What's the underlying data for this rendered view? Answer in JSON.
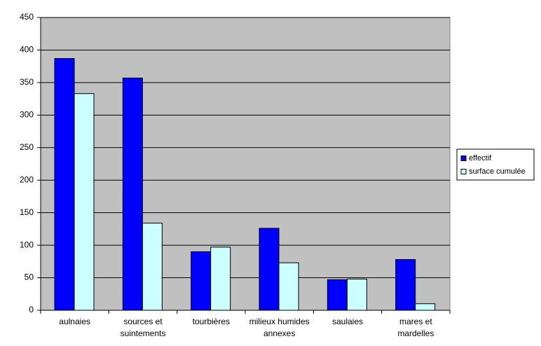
{
  "chart_data": {
    "type": "bar",
    "categories": [
      "aulnaies",
      "sources et suintements",
      "tourbières",
      "milieux humides annexes",
      "saulaies",
      "mares et mardelles"
    ],
    "series": [
      {
        "name": "effectif",
        "color": "#0000ff",
        "values": [
          387,
          357,
          90,
          126,
          47,
          78
        ]
      },
      {
        "name": "surface cumulée",
        "color": "#ccffff",
        "values": [
          333,
          134,
          97,
          73,
          48,
          10
        ]
      }
    ],
    "ylim": [
      0,
      450
    ],
    "yticks": [
      0,
      50,
      100,
      150,
      200,
      250,
      300,
      350,
      400,
      450
    ],
    "grid": true,
    "plot_background": "#c0c0c0",
    "legend": "right"
  }
}
